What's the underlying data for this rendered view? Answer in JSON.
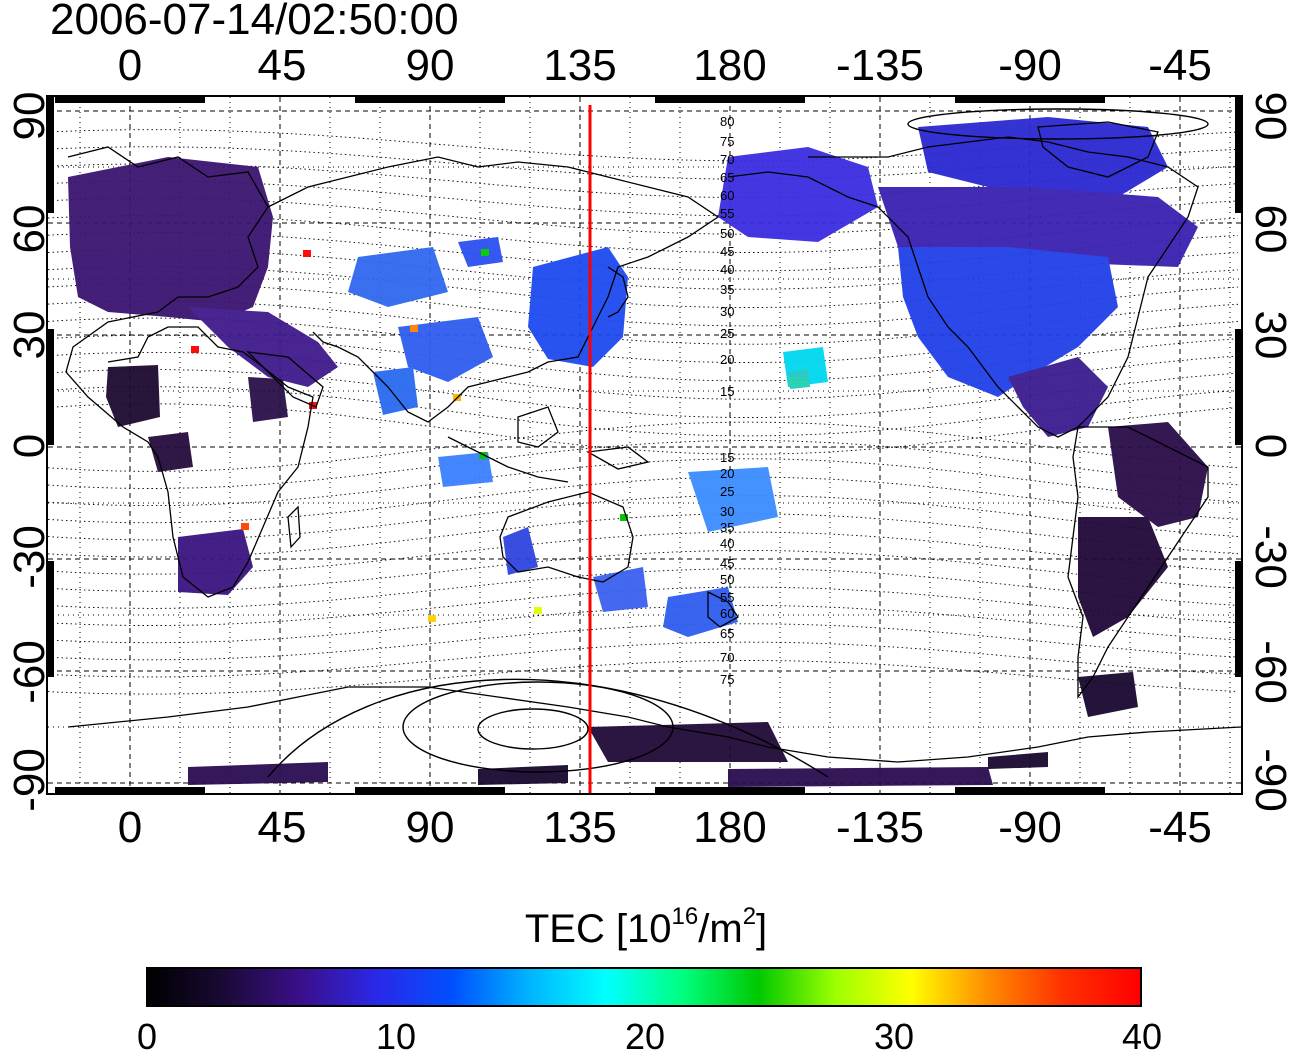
{
  "title": "2006-07-14/02:50:00",
  "longitude_labels": [
    "0",
    "45",
    "90",
    "135",
    "180",
    "-135",
    "-90",
    "-45"
  ],
  "latitude_labels": [
    "90",
    "60",
    "30",
    "0",
    "-30",
    "-60",
    "-90"
  ],
  "magnetic_latitude_labels": [
    "80",
    "75",
    "70",
    "65",
    "60",
    "55",
    "50",
    "45",
    "40",
    "35",
    "30",
    "25",
    "20",
    "15",
    "15",
    "20",
    "25",
    "30",
    "35",
    "40",
    "45",
    "50",
    "55",
    "60",
    "65",
    "70",
    "75"
  ],
  "marker_line": {
    "longitude": 138,
    "color": "#ff0000"
  },
  "colorbar": {
    "title_prefix": "TEC  [10",
    "title_exp1": "16",
    "title_mid": "/m",
    "title_exp2": "2",
    "title_suffix": "]",
    "min": 0,
    "max": 40,
    "tick_labels": [
      "0",
      "10",
      "20",
      "30",
      "40"
    ],
    "stops": [
      "#000000",
      "#1a0a36",
      "#3b0f8a",
      "#2a28e8",
      "#0050ff",
      "#00b4ff",
      "#00ffff",
      "#00ff80",
      "#00c800",
      "#9cff00",
      "#ffff00",
      "#ff8c00",
      "#ff3000",
      "#ff0000"
    ]
  }
}
